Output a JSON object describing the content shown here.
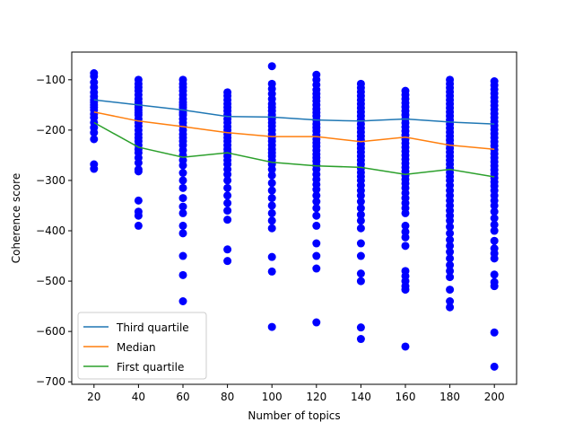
{
  "chart_data": {
    "type": "scatter",
    "xlabel": "Number of topics",
    "ylabel": "Coherence score",
    "xlim": [
      10,
      210
    ],
    "ylim": [
      -705,
      -45
    ],
    "xticks": [
      20,
      40,
      60,
      80,
      100,
      120,
      140,
      160,
      180,
      200
    ],
    "yticks": [
      -700,
      -600,
      -500,
      -400,
      -300,
      -200,
      -100
    ],
    "grid": false,
    "legend_position": "lower-left",
    "colors": {
      "points": "#0000ff",
      "third_quartile": "#1f77b4",
      "median": "#ff7f0e",
      "first_quartile": "#2ca02c"
    },
    "series": [
      {
        "name": "Third quartile",
        "color": "#1f77b4",
        "values": [
          -140,
          -150,
          -160,
          -173,
          -174,
          -180,
          -182,
          -178,
          -184,
          -188
        ]
      },
      {
        "name": "Median",
        "color": "#ff7f0e",
        "values": [
          -164,
          -182,
          -193,
          -205,
          -213,
          -213,
          -223,
          -214,
          -230,
          -238
        ]
      },
      {
        "name": "First quartile",
        "color": "#2ca02c",
        "values": [
          -185,
          -234,
          -254,
          -245,
          -264,
          -271,
          -274,
          -288,
          -278,
          -293
        ]
      }
    ],
    "scatter": [
      {
        "x": 20,
        "y": [
          -87,
          -93,
          -105,
          -115,
          -125,
          -133,
          -140,
          -145,
          -150,
          -155,
          -160,
          -168,
          -175,
          -185,
          -195,
          -205,
          -218,
          -268,
          -277
        ]
      },
      {
        "x": 40,
        "y": [
          -100,
          -108,
          -115,
          -122,
          -130,
          -138,
          -145,
          -150,
          -155,
          -160,
          -165,
          -170,
          -178,
          -185,
          -192,
          -200,
          -208,
          -215,
          -222,
          -230,
          -238,
          -245,
          -255,
          -265,
          -278,
          -282,
          -340,
          -362,
          -370,
          -390
        ]
      },
      {
        "x": 60,
        "y": [
          -100,
          -108,
          -115,
          -122,
          -130,
          -138,
          -145,
          -150,
          -155,
          -160,
          -165,
          -170,
          -178,
          -185,
          -192,
          -200,
          -208,
          -215,
          -222,
          -230,
          -240,
          -250,
          -260,
          -270,
          -285,
          -300,
          -315,
          -335,
          -352,
          -365,
          -390,
          -405,
          -450,
          -488,
          -540
        ]
      },
      {
        "x": 80,
        "y": [
          -125,
          -132,
          -140,
          -148,
          -155,
          -162,
          -170,
          -178,
          -185,
          -193,
          -200,
          -208,
          -215,
          -222,
          -230,
          -238,
          -245,
          -252,
          -260,
          -268,
          -278,
          -288,
          -300,
          -315,
          -330,
          -345,
          -360,
          -378,
          -437,
          -460
        ]
      },
      {
        "x": 100,
        "y": [
          -73,
          -108,
          -118,
          -128,
          -138,
          -148,
          -155,
          -162,
          -170,
          -178,
          -185,
          -192,
          -200,
          -208,
          -215,
          -222,
          -230,
          -238,
          -245,
          -252,
          -260,
          -268,
          -278,
          -290,
          -305,
          -320,
          -335,
          -350,
          -365,
          -380,
          -395,
          -452,
          -481,
          -591
        ]
      },
      {
        "x": 120,
        "y": [
          -90,
          -100,
          -110,
          -120,
          -128,
          -135,
          -142,
          -150,
          -158,
          -165,
          -172,
          -180,
          -188,
          -195,
          -202,
          -210,
          -218,
          -225,
          -232,
          -240,
          -248,
          -255,
          -262,
          -270,
          -278,
          -288,
          -298,
          -308,
          -318,
          -330,
          -342,
          -355,
          -370,
          -390,
          -425,
          -450,
          -475,
          -582
        ]
      },
      {
        "x": 140,
        "y": [
          -108,
          -116,
          -124,
          -132,
          -140,
          -148,
          -156,
          -164,
          -172,
          -180,
          -188,
          -196,
          -204,
          -212,
          -220,
          -228,
          -236,
          -244,
          -252,
          -260,
          -268,
          -276,
          -284,
          -292,
          -300,
          -310,
          -320,
          -330,
          -342,
          -355,
          -368,
          -380,
          -395,
          -425,
          -450,
          -485,
          -500,
          -592,
          -615
        ]
      },
      {
        "x": 160,
        "y": [
          -122,
          -130,
          -138,
          -146,
          -154,
          -162,
          -170,
          -178,
          -186,
          -194,
          -202,
          -210,
          -218,
          -226,
          -234,
          -242,
          -250,
          -258,
          -266,
          -274,
          -282,
          -290,
          -298,
          -306,
          -315,
          -325,
          -335,
          -345,
          -355,
          -365,
          -390,
          -402,
          -413,
          -430,
          -480,
          -490,
          -500,
          -510,
          -517,
          -630
        ]
      },
      {
        "x": 180,
        "y": [
          -100,
          -108,
          -116,
          -124,
          -132,
          -140,
          -148,
          -156,
          -164,
          -172,
          -180,
          -188,
          -196,
          -204,
          -212,
          -220,
          -228,
          -236,
          -244,
          -252,
          -260,
          -268,
          -276,
          -284,
          -292,
          -300,
          -310,
          -320,
          -330,
          -340,
          -350,
          -360,
          -370,
          -380,
          -392,
          -405,
          -418,
          -430,
          -442,
          -455,
          -468,
          -480,
          -492,
          -517,
          -540,
          -552
        ]
      },
      {
        "x": 200,
        "y": [
          -103,
          -111,
          -119,
          -127,
          -135,
          -143,
          -151,
          -159,
          -167,
          -175,
          -183,
          -191,
          -199,
          -207,
          -215,
          -223,
          -231,
          -239,
          -247,
          -255,
          -263,
          -271,
          -279,
          -287,
          -295,
          -303,
          -311,
          -320,
          -330,
          -340,
          -350,
          -362,
          -375,
          -388,
          -400,
          -420,
          -435,
          -445,
          -455,
          -487,
          -502,
          -510,
          -602,
          -670
        ]
      }
    ]
  }
}
